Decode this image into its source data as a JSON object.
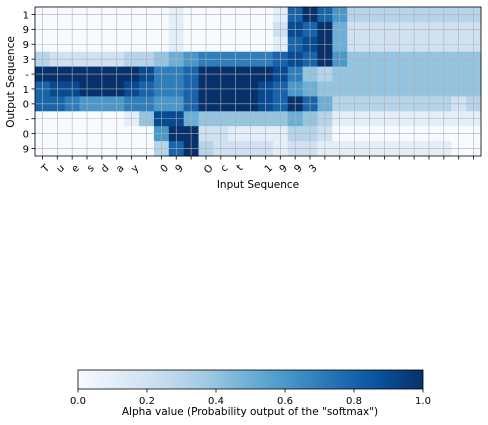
{
  "chart_data": {
    "type": "heatmap",
    "title": "",
    "xlabel": "Input Sequence",
    "ylabel": "Output Sequence",
    "x_tick_labels": [
      "T",
      "u",
      "e",
      "s",
      "d",
      "a",
      "y",
      " ",
      "0",
      "9",
      " ",
      "O",
      "c",
      "t",
      " ",
      "1",
      "9",
      "9",
      "3"
    ],
    "y_tick_labels": [
      "1",
      "9",
      "9",
      "3",
      "-",
      "1",
      "0",
      "-",
      "0",
      "9"
    ],
    "n_cols": 30,
    "grid": true,
    "colormap": "Blues",
    "values": [
      [
        0,
        0,
        0,
        0,
        0,
        0,
        0,
        0,
        0,
        0.1,
        0,
        0,
        0,
        0,
        0,
        0,
        0.1,
        0.8,
        1,
        0.8,
        0.6,
        0.3,
        0.3,
        0.3,
        0.3,
        0.3,
        0.3,
        0.3,
        0.3,
        0.3
      ],
      [
        0,
        0,
        0,
        0,
        0,
        0,
        0,
        0,
        0,
        0.1,
        0,
        0,
        0,
        0,
        0,
        0,
        0.2,
        0.9,
        0.8,
        1,
        0.5,
        0.2,
        0.2,
        0.2,
        0.2,
        0.2,
        0.2,
        0.2,
        0.2,
        0.2
      ],
      [
        0,
        0,
        0,
        0,
        0,
        0,
        0,
        0,
        0,
        0.1,
        0,
        0,
        0,
        0,
        0,
        0,
        0.1,
        0.8,
        0.9,
        1,
        0.5,
        0.2,
        0.2,
        0.2,
        0.2,
        0.2,
        0.2,
        0.2,
        0.2,
        0.2
      ],
      [
        0.3,
        0.2,
        0.2,
        0.2,
        0.2,
        0.2,
        0.3,
        0.3,
        0.4,
        0.5,
        0.6,
        0.7,
        0.7,
        0.7,
        0.7,
        0.7,
        0.8,
        0.9,
        0.8,
        1,
        0.6,
        0.4,
        0.4,
        0.4,
        0.4,
        0.4,
        0.4,
        0.4,
        0.4,
        0.4
      ],
      [
        1,
        1,
        1,
        1,
        1,
        1,
        1,
        0.9,
        0.7,
        0.7,
        0.8,
        1,
        1,
        1,
        1,
        1,
        0.9,
        0.7,
        0.4,
        0.3,
        0.4,
        0.4,
        0.4,
        0.4,
        0.4,
        0.4,
        0.4,
        0.4,
        0.4,
        0.4
      ],
      [
        0.8,
        0.9,
        0.9,
        1,
        1,
        1,
        0.9,
        0.8,
        0.7,
        0.7,
        0.8,
        1,
        1,
        1,
        1,
        0.9,
        0.8,
        0.6,
        0.5,
        0.4,
        0.4,
        0.4,
        0.4,
        0.4,
        0.4,
        0.4,
        0.4,
        0.4,
        0.4,
        0.4
      ],
      [
        0.8,
        0.8,
        0.7,
        0.6,
        0.6,
        0.6,
        0.7,
        0.7,
        0.6,
        0.6,
        0.8,
        1,
        1,
        1,
        1,
        0.9,
        0.8,
        1,
        0.8,
        0.5,
        0.3,
        0.3,
        0.3,
        0.3,
        0.3,
        0.3,
        0.3,
        0.3,
        0.2,
        0.3
      ],
      [
        0,
        0,
        0,
        0,
        0,
        0,
        0.1,
        0.4,
        0.9,
        0.9,
        0.5,
        0.4,
        0.4,
        0.4,
        0.4,
        0.4,
        0.4,
        0.5,
        0.4,
        0.3,
        0.1,
        0.1,
        0.1,
        0.1,
        0.1,
        0.1,
        0.1,
        0.1,
        0.1,
        0.1
      ],
      [
        0,
        0,
        0,
        0,
        0,
        0,
        0,
        0,
        0.6,
        1,
        1,
        0.2,
        0.2,
        0.1,
        0.1,
        0.1,
        0.1,
        0.3,
        0.3,
        0.2,
        0,
        0,
        0,
        0,
        0,
        0,
        0,
        0,
        0,
        0
      ],
      [
        0,
        0,
        0,
        0,
        0,
        0,
        0,
        0,
        0.3,
        0.8,
        1,
        0.3,
        0.2,
        0.2,
        0.2,
        0.2,
        0.1,
        0.2,
        0.2,
        0.1,
        0.1,
        0.1,
        0.1,
        0.1,
        0.1,
        0.1,
        0.1,
        0.1,
        0,
        0
      ]
    ],
    "colorbar": {
      "label": "Alpha value (Probability output of the \"softmax\")",
      "min": 0,
      "max": 1,
      "ticks": [
        "0.0",
        "0.2",
        "0.4",
        "0.6",
        "0.8",
        "1.0"
      ],
      "tick_values": [
        0,
        0.2,
        0.4,
        0.6,
        0.8,
        1.0
      ]
    }
  }
}
